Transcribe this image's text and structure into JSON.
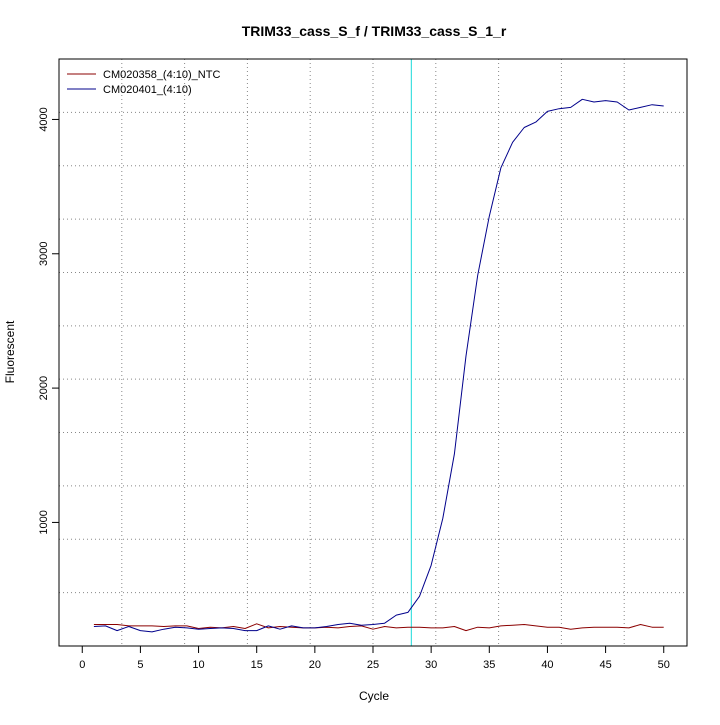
{
  "chart_data": {
    "type": "line",
    "title": "TRIM33_cass_S_f / TRIM33_cass_S_1_r",
    "xlabel": "Cycle",
    "ylabel": "Fluorescent",
    "xlim": [
      -2.0,
      52.0
    ],
    "ylim": [
      80,
      4450
    ],
    "x_ticks": [
      0,
      5,
      10,
      15,
      20,
      25,
      30,
      35,
      40,
      45,
      50
    ],
    "y_ticks": [
      1000,
      2000,
      3000,
      4000
    ],
    "grid": true,
    "legend_position": "top-left",
    "threshold_line": {
      "x": 28.3,
      "color": "#40e0e0"
    },
    "x": [
      1,
      2,
      3,
      4,
      5,
      6,
      7,
      8,
      9,
      10,
      11,
      12,
      13,
      14,
      15,
      16,
      17,
      18,
      19,
      20,
      21,
      22,
      23,
      24,
      25,
      26,
      27,
      28,
      29,
      30,
      31,
      32,
      33,
      34,
      35,
      36,
      37,
      38,
      39,
      40,
      41,
      42,
      43,
      44,
      45,
      46,
      47,
      48,
      49,
      50
    ],
    "series": [
      {
        "name": "CM020358_(4:10)_NTC",
        "color": "#8b0000",
        "values": [
          240,
          240,
          240,
          230,
          230,
          230,
          225,
          230,
          230,
          210,
          220,
          215,
          225,
          210,
          245,
          215,
          225,
          220,
          215,
          215,
          220,
          215,
          225,
          230,
          205,
          225,
          215,
          220,
          220,
          215,
          215,
          225,
          195,
          220,
          215,
          230,
          235,
          240,
          230,
          220,
          220,
          205,
          215,
          220,
          220,
          220,
          215,
          240,
          220,
          220
        ]
      },
      {
        "name": "CM020401_(4:10)",
        "color": "#00008b",
        "values": [
          225,
          230,
          195,
          225,
          195,
          185,
          205,
          220,
          215,
          205,
          210,
          215,
          210,
          195,
          195,
          230,
          205,
          230,
          215,
          215,
          225,
          240,
          250,
          235,
          240,
          250,
          310,
          330,
          450,
          680,
          1030,
          1510,
          2240,
          2840,
          3280,
          3640,
          3830,
          3940,
          3980,
          4060,
          4080,
          4090,
          4150,
          4130,
          4140,
          4130,
          4070,
          4090,
          4110,
          4100
        ]
      }
    ]
  }
}
